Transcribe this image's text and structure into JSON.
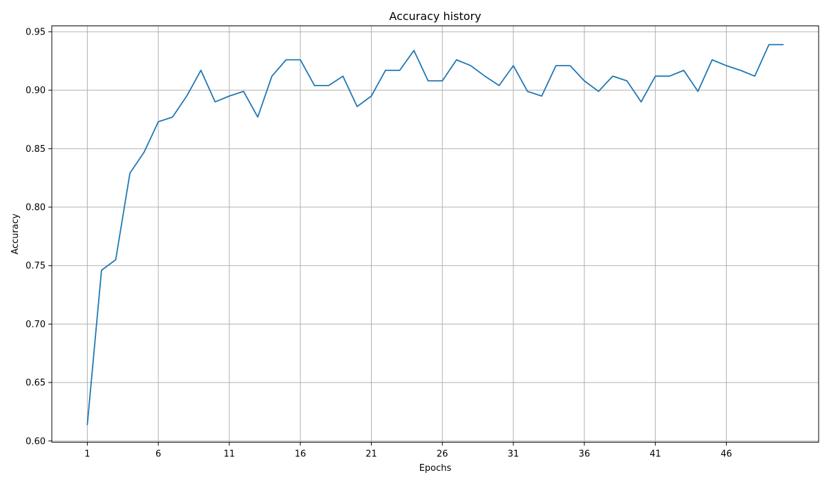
{
  "chart_data": {
    "type": "line",
    "title": "Accuracy history",
    "xlabel": "Epochs",
    "ylabel": "Accuracy",
    "xlim": [
      -1.5,
      52.5
    ],
    "ylim": [
      0.599,
      0.955
    ],
    "xticks": [
      1,
      6,
      11,
      16,
      21,
      26,
      31,
      36,
      41,
      46
    ],
    "yticks": [
      0.6,
      0.65,
      0.7,
      0.75,
      0.8,
      0.85,
      0.9,
      0.95
    ],
    "ytick_labels": [
      "0.60",
      "0.65",
      "0.70",
      "0.75",
      "0.80",
      "0.85",
      "0.90",
      "0.95"
    ],
    "grid": true,
    "colors": {
      "line": "#1f77b4",
      "grid": "#b0b0b0"
    },
    "series": [
      {
        "x": [
          1,
          2,
          3,
          4,
          5,
          6,
          7,
          8,
          9,
          10,
          11,
          12,
          13,
          14,
          15,
          16,
          17,
          18,
          19,
          20,
          21,
          22,
          23,
          24,
          25,
          26,
          27,
          28,
          29,
          30,
          31,
          32,
          33,
          34,
          35,
          36,
          37,
          38,
          39,
          40,
          41,
          42,
          43,
          44,
          45,
          46,
          47,
          48,
          49,
          50
        ],
        "values": [
          0.614,
          0.746,
          0.755,
          0.829,
          0.847,
          0.873,
          0.877,
          0.895,
          0.917,
          0.89,
          0.895,
          0.899,
          0.877,
          0.912,
          0.926,
          0.926,
          0.904,
          0.904,
          0.912,
          0.886,
          0.895,
          0.917,
          0.917,
          0.934,
          0.908,
          0.908,
          0.926,
          0.921,
          0.912,
          0.904,
          0.921,
          0.899,
          0.895,
          0.921,
          0.921,
          0.908,
          0.899,
          0.912,
          0.908,
          0.89,
          0.912,
          0.912,
          0.917,
          0.899,
          0.926,
          0.921,
          0.917,
          0.912,
          0.939,
          0.939
        ]
      }
    ]
  }
}
